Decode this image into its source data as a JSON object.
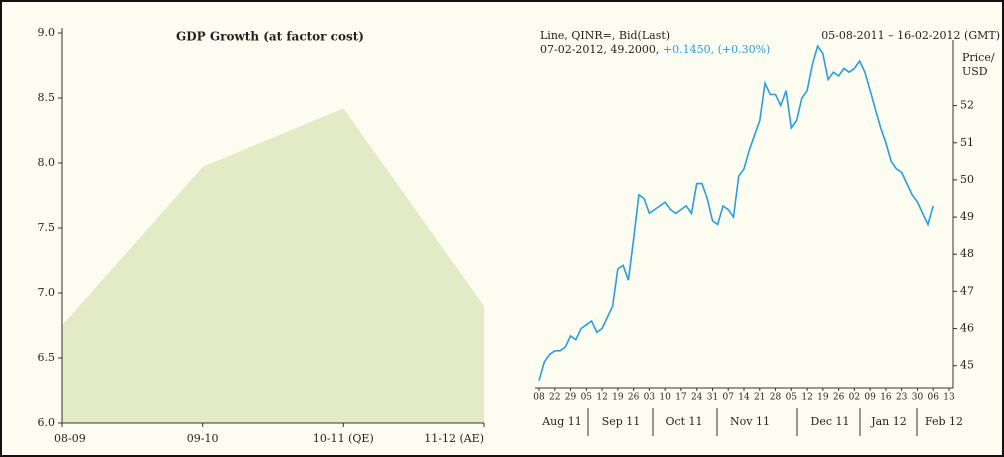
{
  "chart_data": [
    {
      "type": "area",
      "title": "GDP Growth (at factor cost)",
      "categories": [
        "08-09",
        "09-10",
        "10-11 (QE)",
        "11-12 (AE)"
      ],
      "values": [
        6.75,
        7.97,
        8.42,
        6.9
      ],
      "color": "#e2ebc5",
      "ylim": [
        6,
        9
      ],
      "yticks": [
        {
          "value": 6,
          "label": "6.0"
        },
        6.5,
        {
          "value": 7,
          "label": "7.0"
        },
        7.5,
        {
          "value": 8,
          "label": "8.0"
        },
        8.5,
        {
          "value": 9,
          "label": "9.0"
        }
      ]
    },
    {
      "type": "line",
      "title": "Line, QINR=, Bid(Last)",
      "subtitle": "05-08-2011 – 16-02-2012 (GMT)",
      "annotation": "07-02-2012, 49.2000,",
      "annotation_change": "+0.1450, (+0.30%)",
      "ylabel": [
        "Price/",
        "USD"
      ],
      "categories": [
        "08",
        null,
        null,
        "22",
        null,
        null,
        "29",
        null,
        null,
        "05",
        null,
        null,
        "12",
        null,
        null,
        "19",
        null,
        null,
        "26",
        null,
        null,
        "03",
        null,
        null,
        "10",
        null,
        null,
        "17",
        null,
        null,
        "24",
        null,
        null,
        "31",
        null,
        null,
        "07",
        null,
        null,
        "14",
        null,
        null,
        "21",
        null,
        null,
        "28",
        null,
        null,
        "05",
        null,
        null,
        "12",
        null,
        null,
        "19",
        null,
        null,
        "26",
        null,
        null,
        "02",
        null,
        null,
        "09",
        null,
        null,
        "16",
        null,
        null,
        "23",
        null,
        null,
        "30",
        null,
        null,
        "06",
        null,
        null,
        "13"
      ],
      "months": [
        "Aug 11",
        "Sep 11",
        "Oct 11",
        "Nov 11",
        "Dec 11",
        "Jan 12",
        "Feb 12"
      ],
      "series": [
        {
          "name": "QINR=",
          "color": "#2a9de0",
          "values": [
            44.6,
            45.1,
            45.3,
            45.4,
            45.4,
            45.5,
            45.8,
            45.7,
            46.0,
            46.1,
            46.2,
            45.9,
            46.0,
            46.3,
            46.6,
            47.6,
            47.7,
            47.3,
            48.4,
            49.6,
            49.5,
            49.1,
            49.2,
            49.3,
            49.4,
            49.2,
            49.1,
            49.2,
            49.3,
            49.1,
            49.9,
            49.9,
            49.5,
            48.9,
            48.8,
            49.3,
            49.2,
            49.0,
            50.1,
            50.3,
            50.8,
            51.2,
            51.6,
            52.6,
            52.3,
            52.3,
            52.0,
            52.4,
            51.4,
            51.6,
            52.2,
            52.4,
            53.1,
            53.6,
            53.4,
            52.7,
            52.9,
            52.8,
            53.0,
            52.9,
            53.0,
            53.2,
            52.9,
            52.4,
            51.9,
            51.4,
            51.0,
            50.5,
            50.3,
            50.2,
            49.9,
            49.6,
            49.4,
            49.1,
            48.8,
            49.3,
            null,
            null,
            null
          ]
        }
      ],
      "ylim": [
        44.4,
        53.9
      ],
      "yticks": [
        45,
        46,
        47,
        48,
        49,
        50,
        51,
        52
      ]
    }
  ]
}
